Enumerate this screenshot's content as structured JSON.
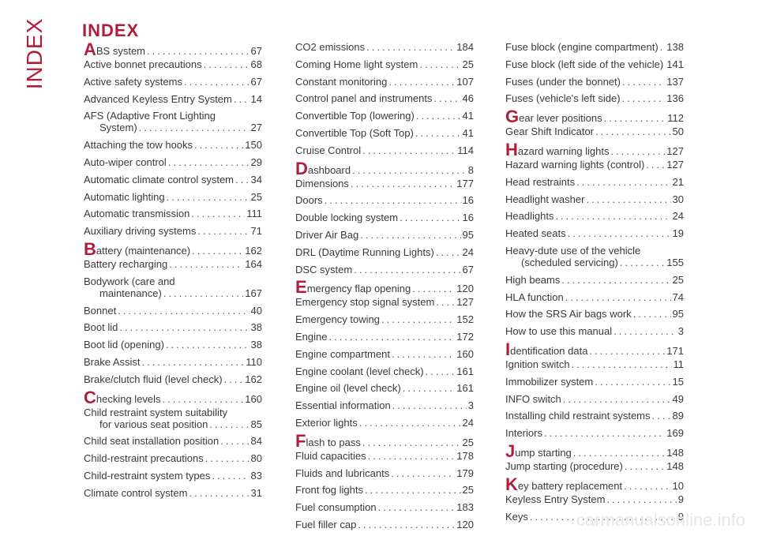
{
  "side_label": "INDEX",
  "heading": "INDEX",
  "watermark": "carmanualsonline.info",
  "columns": [
    [
      {
        "letter": "A",
        "text": "BS system",
        "page": "67",
        "first": true
      },
      {
        "text": "Active bonnet precautions",
        "page": "68"
      },
      {
        "text": "Active safety systems",
        "page": "67"
      },
      {
        "text": "Advanced Keyless Entry System",
        "page": "14"
      },
      {
        "line1": "AFS (Adaptive Front Lighting",
        "text": "System)",
        "page": "27"
      },
      {
        "text": "Attaching the tow hooks",
        "page": "150"
      },
      {
        "text": "Auto-wiper control",
        "page": "29"
      },
      {
        "text": "Automatic climate control system",
        "page": "34"
      },
      {
        "text": "Automatic lighting",
        "page": "25"
      },
      {
        "text": "Automatic transmission",
        "page": "111"
      },
      {
        "text": "Auxiliary driving systems",
        "page": "71"
      },
      {
        "letter": "B",
        "text": "attery (maintenance)",
        "page": "162",
        "first": true
      },
      {
        "text": "Battery recharging",
        "page": "164"
      },
      {
        "line1": "Bodywork (care and",
        "text": "maintenance)",
        "page": "167"
      },
      {
        "text": "Bonnet",
        "page": "40"
      },
      {
        "text": "Boot lid",
        "page": "38"
      },
      {
        "text": "Boot lid (opening)",
        "page": "38"
      },
      {
        "text": "Brake Assist",
        "page": "110"
      },
      {
        "text": "Brake/clutch fluid (level check)",
        "page": "162"
      },
      {
        "letter": "C",
        "text": "hecking levels",
        "page": "160",
        "first": true
      },
      {
        "line1": "Child restraint system suitability",
        "text": "for various seat position",
        "page": "85"
      },
      {
        "text": "Child seat installation position",
        "page": "84"
      },
      {
        "text": "Child-restraint precautions",
        "page": "80"
      },
      {
        "text": "Child-restraint system types",
        "page": "83"
      },
      {
        "text": "Climate control system",
        "page": "31"
      }
    ],
    [
      {
        "text": "CO2 emissions",
        "page": "184"
      },
      {
        "text": "Coming Home light system",
        "page": "25"
      },
      {
        "text": "Constant monitoring",
        "page": "107"
      },
      {
        "text": "Control panel and instruments",
        "page": "46"
      },
      {
        "text": "Convertible Top (lowering)",
        "page": "41"
      },
      {
        "text": "Convertible Top (Soft Top)",
        "page": "41"
      },
      {
        "text": "Cruise Control",
        "page": "114"
      },
      {
        "letter": "D",
        "text": "ashboard",
        "page": "8",
        "first": true
      },
      {
        "text": "Dimensions",
        "page": "177"
      },
      {
        "text": "Doors",
        "page": "16"
      },
      {
        "text": "Double locking system",
        "page": "16"
      },
      {
        "text": "Driver Air Bag",
        "page": "95"
      },
      {
        "text": "DRL (Daytime Running Lights)",
        "page": "24"
      },
      {
        "text": "DSC system",
        "page": "67"
      },
      {
        "letter": "E",
        "text": "mergency flap opening",
        "page": "120",
        "first": true
      },
      {
        "text": "Emergency stop signal system",
        "page": "127"
      },
      {
        "text": "Emergency towing",
        "page": "152"
      },
      {
        "text": "Engine",
        "page": "172"
      },
      {
        "text": "Engine compartment",
        "page": "160"
      },
      {
        "text": "Engine coolant (level check)",
        "page": "161"
      },
      {
        "text": "Engine oil (level check)",
        "page": "161"
      },
      {
        "text": "Essential information",
        "page": "3"
      },
      {
        "text": "Exterior lights",
        "page": "24"
      },
      {
        "letter": "F",
        "text": "lash to pass",
        "page": "25",
        "first": true
      },
      {
        "text": "Fluid capacities",
        "page": "178"
      },
      {
        "text": "Fluids and lubricants",
        "page": "179"
      },
      {
        "text": "Front fog lights",
        "page": "25"
      },
      {
        "text": "Fuel consumption",
        "page": "183"
      },
      {
        "text": "Fuel filler cap",
        "page": "120"
      }
    ],
    [
      {
        "text": "Fuse block (engine compartment)",
        "page": "138"
      },
      {
        "text": "Fuse block (left side of the vehicle)",
        "page": "141"
      },
      {
        "text": "Fuses (under the bonnet)",
        "page": "137"
      },
      {
        "text": "Fuses (vehicle's left side)",
        "page": "136"
      },
      {
        "letter": "G",
        "text": "ear lever positions",
        "page": "112",
        "first": true
      },
      {
        "text": "Gear Shift Indicator",
        "page": "50"
      },
      {
        "letter": "H",
        "text": "azard warning lights",
        "page": "127",
        "first": true
      },
      {
        "text": "Hazard warning lights (control)",
        "page": "127"
      },
      {
        "text": "Head restraints",
        "page": "21"
      },
      {
        "text": "Headlight washer",
        "page": "30"
      },
      {
        "text": "Headlights",
        "page": "24"
      },
      {
        "text": "Heated seats",
        "page": "19"
      },
      {
        "line1": "Heavy-dute use of the vehicle",
        "text": "(scheduled servicing)",
        "page": "155"
      },
      {
        "text": "High beams",
        "page": "25"
      },
      {
        "text": "HLA function",
        "page": "74"
      },
      {
        "text": "How the SRS Air bags work",
        "page": "95"
      },
      {
        "text": "How to use this manual",
        "page": "3"
      },
      {
        "letter": "I",
        "text": "dentification data",
        "page": "171",
        "first": true
      },
      {
        "text": "Ignition switch",
        "page": "11"
      },
      {
        "text": "Immobilizer system",
        "page": "15"
      },
      {
        "text": "INFO switch",
        "page": "49"
      },
      {
        "text": "Installing child restraint systems",
        "page": "89"
      },
      {
        "text": "Interiors",
        "page": "169"
      },
      {
        "letter": "J",
        "text": "ump starting",
        "page": "148",
        "first": true
      },
      {
        "text": "Jump starting (procedure)",
        "page": "148"
      },
      {
        "letter": "K",
        "text": "ey battery replacement",
        "page": "10",
        "first": true
      },
      {
        "text": "Keyless Entry System",
        "page": "9"
      },
      {
        "text": "Keys",
        "page": "9"
      }
    ]
  ]
}
